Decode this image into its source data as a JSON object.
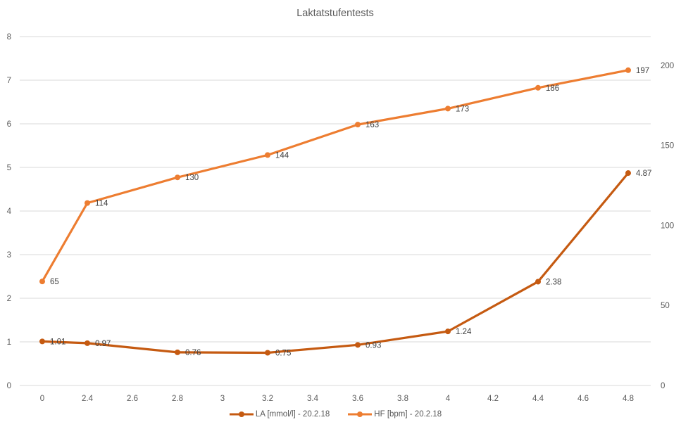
{
  "chart_data": {
    "type": "line",
    "title": "Laktatstufentests",
    "x_axis": {
      "categories": [
        "0",
        "2.4",
        "2.6",
        "2.8",
        "3",
        "3.2",
        "3.4",
        "3.6",
        "3.8",
        "4",
        "4.2",
        "4.4",
        "4.6",
        "4.8"
      ]
    },
    "y_axis_left": {
      "min": 0,
      "max": 8,
      "ticks": [
        0,
        1,
        2,
        3,
        4,
        5,
        6,
        7,
        8
      ]
    },
    "y_axis_right": {
      "min": 0,
      "max": 218,
      "ticks": [
        0,
        50,
        100,
        150,
        200
      ]
    },
    "series": [
      {
        "name": "LA [mmol/l] - 20.2.18",
        "axis": "left",
        "color": "#C55A11",
        "x": [
          "0",
          "2.4",
          "2.8",
          "3.2",
          "3.6",
          "4",
          "4.4",
          "4.8"
        ],
        "category_indices": [
          0,
          1,
          3,
          5,
          7,
          9,
          11,
          13
        ],
        "values": [
          1.01,
          0.97,
          0.76,
          0.75,
          0.93,
          1.24,
          2.38,
          4.87
        ],
        "data_labels": [
          "1.01",
          "0.97",
          "0.76",
          "0.75",
          "0.93",
          "1.24",
          "2.38",
          "4.87"
        ]
      },
      {
        "name": "HF [bpm] - 20.2.18",
        "axis": "right",
        "color": "#ED7D31",
        "x": [
          "0",
          "2.4",
          "2.8",
          "3.2",
          "3.6",
          "4",
          "4.4",
          "4.8"
        ],
        "category_indices": [
          0,
          1,
          3,
          5,
          7,
          9,
          11,
          13
        ],
        "values": [
          65,
          114,
          130,
          144,
          163,
          173,
          186,
          197
        ],
        "data_labels": [
          "65",
          "114",
          "130",
          "144",
          "163",
          "173",
          "186",
          "197"
        ]
      }
    ],
    "legend_position": "bottom",
    "grid": true,
    "colors": {
      "gridline": "#D9D9D9",
      "axis_text": "#595959",
      "data_label_text": "#404040",
      "title_text": "#595959",
      "background": "#FFFFFF"
    }
  }
}
